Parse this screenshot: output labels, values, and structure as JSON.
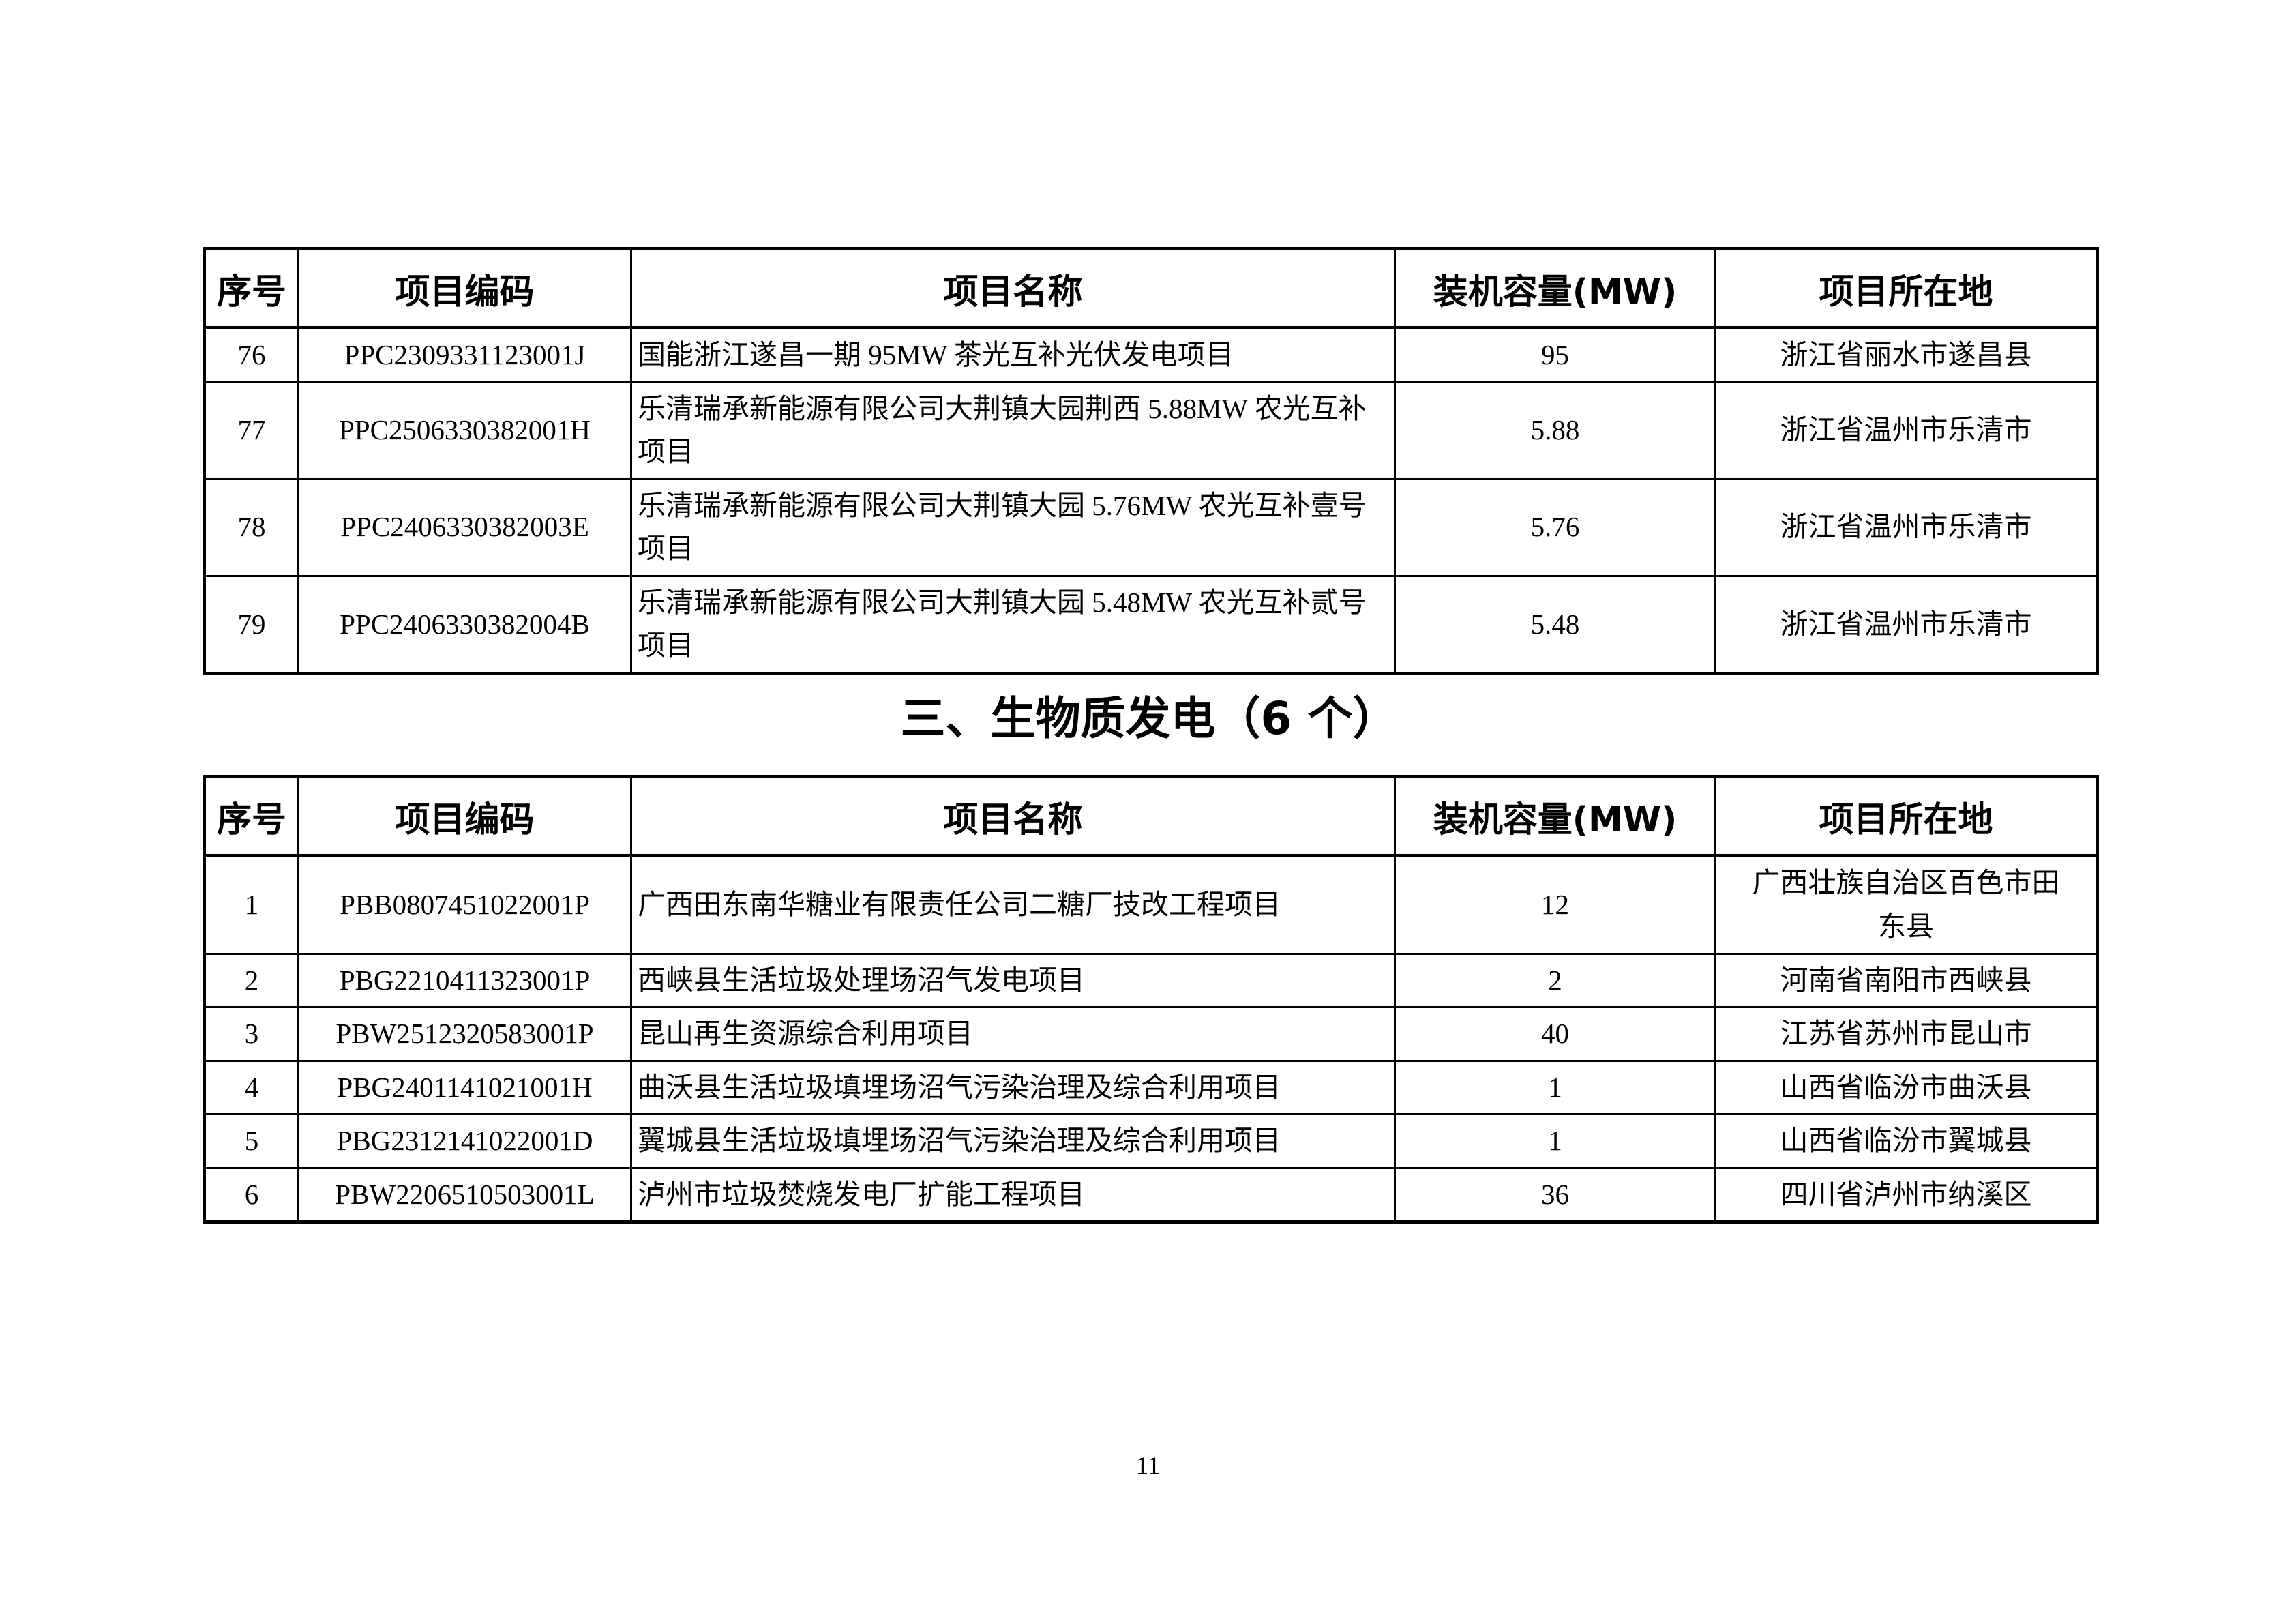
{
  "colors": {
    "background": "#ffffff",
    "text": "#000000",
    "table_border": "#000000"
  },
  "section": {
    "heading": "三、生物质发电（6 个）"
  },
  "table1": {
    "headers": [
      "序号",
      "项目编码",
      "项目名称",
      "装机容量(MW)",
      "项目所在地"
    ],
    "rows": [
      [
        "76",
        "PPC2309331123001J",
        "国能浙江遂昌一期 95MW 茶光互补光伏发电项目",
        "95",
        "浙江省丽水市遂昌县"
      ],
      [
        "77",
        "PPC2506330382001H",
        "乐清瑞承新能源有限公司大荆镇大园荆西 5.88MW 农光互补项目",
        "5.88",
        "浙江省温州市乐清市"
      ],
      [
        "78",
        "PPC2406330382003E",
        "乐清瑞承新能源有限公司大荆镇大园 5.76MW 农光互补壹号项目",
        "5.76",
        "浙江省温州市乐清市"
      ],
      [
        "79",
        "PPC2406330382004B",
        "乐清瑞承新能源有限公司大荆镇大园 5.48MW 农光互补贰号项目",
        "5.48",
        "浙江省温州市乐清市"
      ]
    ]
  },
  "table2": {
    "headers": [
      "序号",
      "项目编码",
      "项目名称",
      "装机容量(MW)",
      "项目所在地"
    ],
    "rows": [
      [
        "1",
        "PBB0807451022001P",
        "广西田东南华糖业有限责任公司二糖厂技改工程项目",
        "12",
        "广西壮族自治区百色市田东县"
      ],
      [
        "2",
        "PBG2210411323001P",
        "西峡县生活垃圾处理场沼气发电项目",
        "2",
        "河南省南阳市西峡县"
      ],
      [
        "3",
        "PBW2512320583001P",
        "昆山再生资源综合利用项目",
        "40",
        "江苏省苏州市昆山市"
      ],
      [
        "4",
        "PBG2401141021001H",
        "曲沃县生活垃圾填埋场沼气污染治理及综合利用项目",
        "1",
        "山西省临汾市曲沃县"
      ],
      [
        "5",
        "PBG2312141022001D",
        "翼城县生活垃圾填埋场沼气污染治理及综合利用项目",
        "1",
        "山西省临汾市翼城县"
      ],
      [
        "6",
        "PBW2206510503001L",
        "泸州市垃圾焚烧发电厂扩能工程项目",
        "36",
        "四川省泸州市纳溪区"
      ]
    ]
  },
  "page": {
    "number": "11"
  }
}
